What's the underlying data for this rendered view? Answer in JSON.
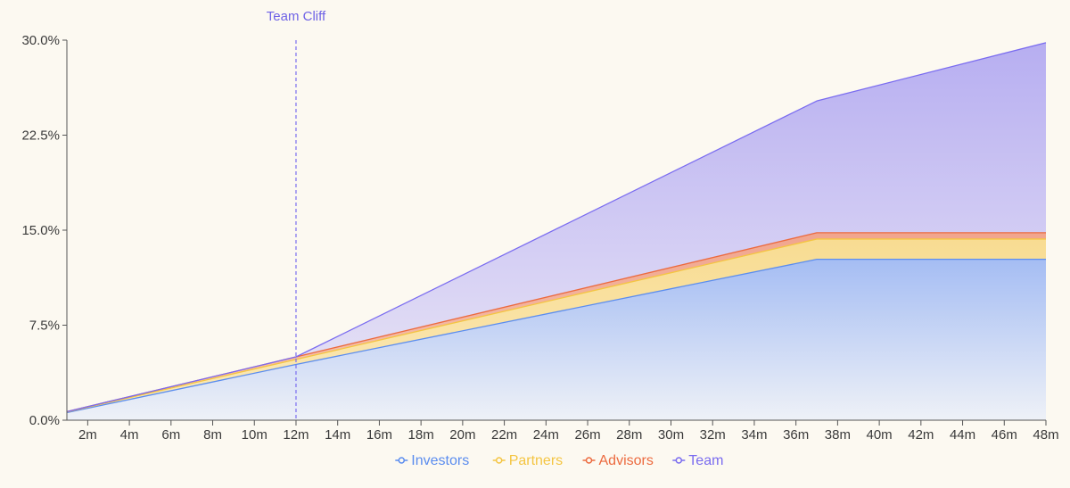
{
  "chart_data": {
    "type": "area",
    "stacked": true,
    "title": "",
    "xlabel": "",
    "ylabel": "",
    "x_ticks": [
      "2m",
      "4m",
      "6m",
      "8m",
      "10m",
      "12m",
      "14m",
      "16m",
      "18m",
      "20m",
      "22m",
      "24m",
      "26m",
      "28m",
      "30m",
      "32m",
      "34m",
      "36m",
      "38m",
      "40m",
      "42m",
      "44m",
      "46m",
      "48m"
    ],
    "x_range": [
      1,
      48
    ],
    "y_ticks": [
      "0.0%",
      "7.5%",
      "15.0%",
      "22.5%",
      "30.0%"
    ],
    "y_tick_values": [
      0,
      7.5,
      15,
      22.5,
      30
    ],
    "ylim": [
      0,
      30
    ],
    "grid": false,
    "legend_position": "bottom-center",
    "annotation": {
      "label": "Team Cliff",
      "x": 12
    },
    "series": [
      {
        "name": "Investors",
        "color": "#5b8def",
        "points": [
          [
            1,
            0.6
          ],
          [
            12,
            4.4
          ],
          [
            37,
            12.7
          ],
          [
            48,
            12.7
          ]
        ]
      },
      {
        "name": "Partners",
        "color": "#f4c542",
        "points": [
          [
            1,
            0.05
          ],
          [
            12,
            0.4
          ],
          [
            37,
            1.6
          ],
          [
            48,
            1.6
          ]
        ]
      },
      {
        "name": "Advisors",
        "color": "#ec6a3f",
        "points": [
          [
            1,
            0.03
          ],
          [
            12,
            0.2
          ],
          [
            37,
            0.5
          ],
          [
            48,
            0.5
          ]
        ]
      },
      {
        "name": "Team",
        "color": "#7a6cf0",
        "points": [
          [
            1,
            0
          ],
          [
            12,
            0
          ],
          [
            37,
            10.4
          ],
          [
            48,
            15.0
          ]
        ]
      }
    ]
  }
}
